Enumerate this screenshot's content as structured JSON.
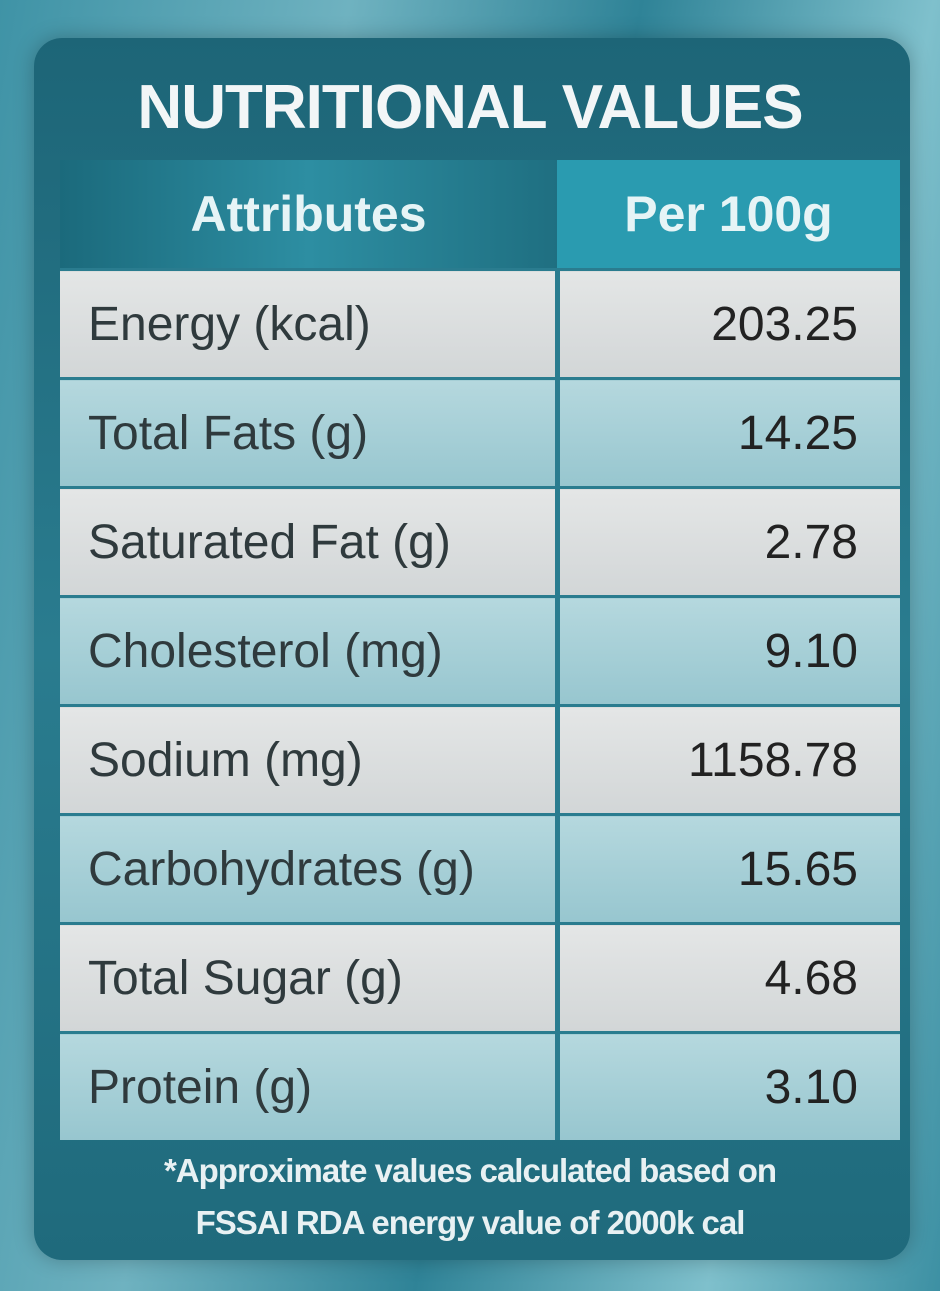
{
  "header": {
    "title": "NUTRITIONAL VALUES"
  },
  "table": {
    "columns": [
      "Attributes",
      "Per 100g"
    ],
    "rows": [
      [
        "Energy (kcal)",
        "203.25"
      ],
      [
        "Total Fats (g)",
        "14.25"
      ],
      [
        "Saturated Fat (g)",
        "2.78"
      ],
      [
        "Cholesterol (mg)",
        "9.10"
      ],
      [
        "Sodium (mg)",
        "1158.78"
      ],
      [
        "Carbohydrates (g)",
        "15.65"
      ],
      [
        "Total Sugar (g)",
        "4.68"
      ],
      [
        "Protein (g)",
        "3.10"
      ]
    ]
  },
  "footnote": {
    "lines": [
      "*Approximate values calculated based on",
      "FSSAI RDA energy value of 2000k cal"
    ]
  }
}
